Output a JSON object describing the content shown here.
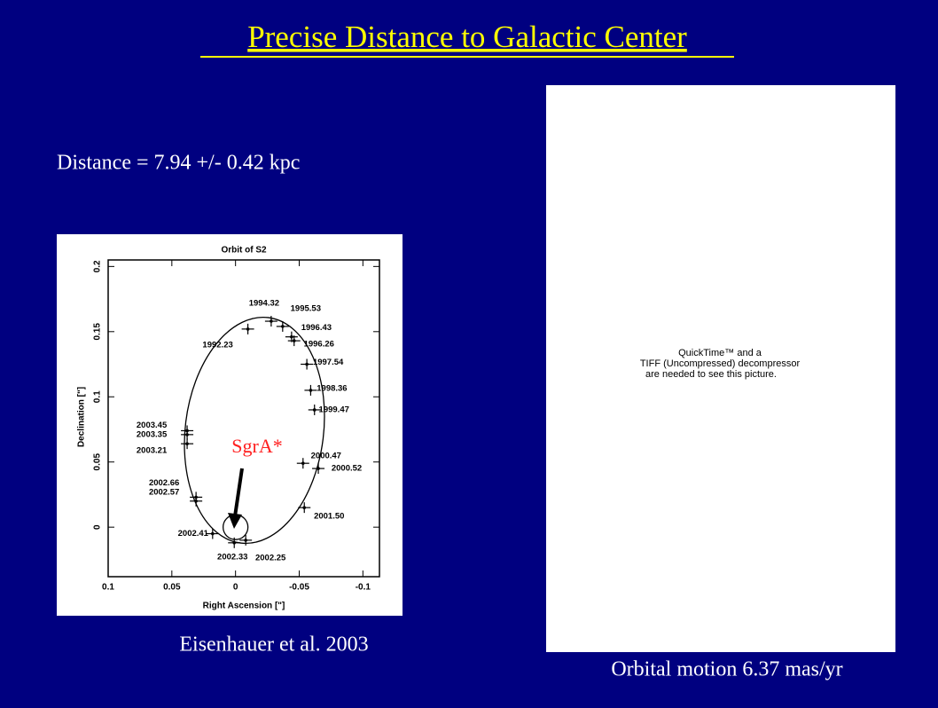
{
  "title": "Precise Distance to Galactic Center",
  "distance_text": "Distance = 7.94 +/- 0.42 kpc",
  "chart_data": {
    "type": "scatter",
    "title": "Orbit of S2",
    "x_label": "Right Ascension [\"]",
    "y_label": "Declination [\"]",
    "xlim": [
      0.1,
      -0.113
    ],
    "ylim": [
      -0.038,
      0.205
    ],
    "xticks": [
      0.1,
      0.05,
      0,
      -0.05,
      -0.1
    ],
    "yticks": [
      0,
      0.05,
      0.1,
      0.15,
      0.2
    ],
    "x": [
      -0.0097,
      -0.028,
      -0.037,
      -0.044,
      -0.046,
      -0.056,
      -0.059,
      -0.062,
      -0.053,
      -0.065,
      -0.054,
      -0.008,
      0.001,
      0.018,
      0.031,
      0.031,
      0.038,
      0.038,
      0.038
    ],
    "values": [
      0.152,
      0.158,
      0.154,
      0.146,
      0.143,
      0.125,
      0.105,
      0.09,
      0.049,
      0.045,
      0.015,
      -0.01,
      -0.012,
      -0.005,
      0.02,
      0.023,
      0.064,
      0.071,
      0.074
    ],
    "point_labels": [
      "1992.23",
      "1994.32",
      "1995.53",
      "1996.43",
      "1996.26",
      "1997.54",
      "1998.36",
      "1999.47",
      "2000.47",
      "2000.52",
      "2001.50",
      "2002.25",
      "2002.33",
      "2002.41",
      "2002.57",
      "2002.66",
      "2003.21",
      "2003.35",
      "2003.45"
    ],
    "annotation": "SgrA*",
    "color": "#000000"
  },
  "caption_left": "Eisenhauer et al. 2003",
  "quicktime_text": [
    "QuickTime™ and a",
    "TIFF (Uncompressed) decompressor",
    "are needed to see this picture."
  ],
  "caption_right": "Orbital motion 6.37 mas/yr"
}
